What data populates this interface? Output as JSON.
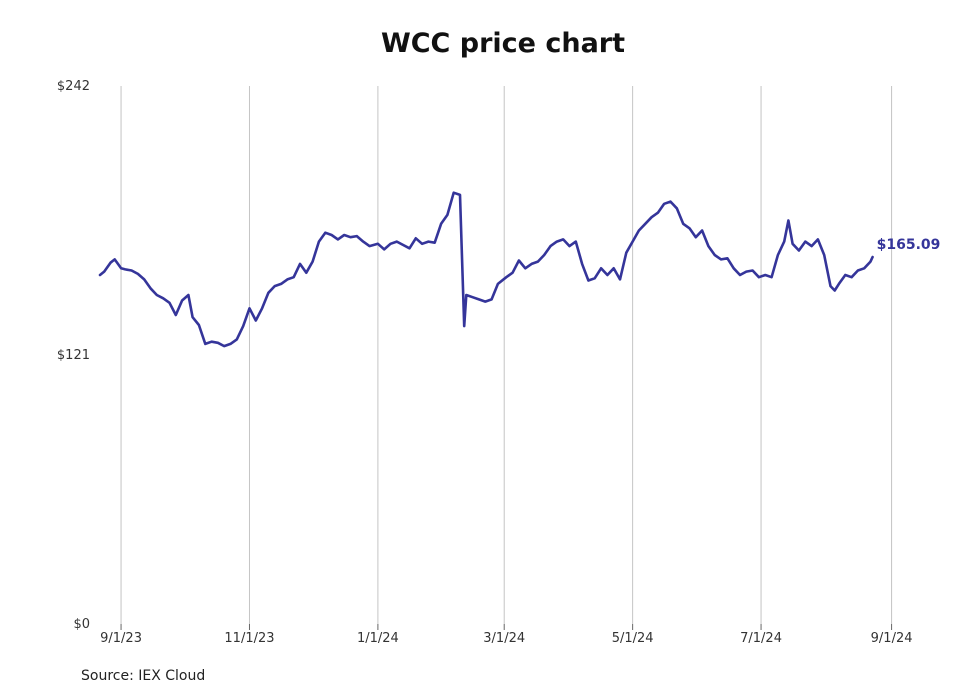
{
  "chart_data": {
    "type": "line",
    "title": "WCC price chart",
    "xlabel": "",
    "ylabel": "",
    "ylim": [
      0,
      242
    ],
    "y_ticks": [
      "$0",
      "$121",
      "$242"
    ],
    "x_ticks": [
      "9/1/23",
      "11/1/23",
      "1/1/24",
      "3/1/24",
      "5/1/24",
      "7/1/24",
      "9/1/24"
    ],
    "x_range": [
      "2023-08-22",
      "2024-09-05"
    ],
    "grid": "vertical",
    "color": "#35359a",
    "last_value_label": "$165.09",
    "series": [
      {
        "points": [
          [
            "2023-08-22",
            157.0
          ],
          [
            "2023-08-24",
            158.5
          ],
          [
            "2023-08-27",
            162.5
          ],
          [
            "2023-08-29",
            164.0
          ],
          [
            "2023-09-01",
            160.0
          ],
          [
            "2023-09-03",
            159.5
          ],
          [
            "2023-09-06",
            159.0
          ],
          [
            "2023-09-09",
            157.5
          ],
          [
            "2023-09-12",
            155.0
          ],
          [
            "2023-09-15",
            151.0
          ],
          [
            "2023-09-18",
            148.0
          ],
          [
            "2023-09-21",
            146.5
          ],
          [
            "2023-09-24",
            144.5
          ],
          [
            "2023-09-27",
            139.0
          ],
          [
            "2023-09-30",
            145.5
          ],
          [
            "2023-10-03",
            148.0
          ],
          [
            "2023-10-05",
            138.0
          ],
          [
            "2023-10-08",
            134.5
          ],
          [
            "2023-10-11",
            126.0
          ],
          [
            "2023-10-14",
            127.0
          ],
          [
            "2023-10-17",
            126.5
          ],
          [
            "2023-10-20",
            125.0
          ],
          [
            "2023-10-23",
            126.0
          ],
          [
            "2023-10-26",
            128.0
          ],
          [
            "2023-10-29",
            134.0
          ],
          [
            "2023-11-01",
            142.0
          ],
          [
            "2023-11-04",
            136.5
          ],
          [
            "2023-11-07",
            142.0
          ],
          [
            "2023-11-10",
            149.0
          ],
          [
            "2023-11-13",
            152.0
          ],
          [
            "2023-11-16",
            153.0
          ],
          [
            "2023-11-19",
            155.0
          ],
          [
            "2023-11-22",
            156.0
          ],
          [
            "2023-11-25",
            162.0
          ],
          [
            "2023-11-28",
            158.0
          ],
          [
            "2023-12-01",
            163.0
          ],
          [
            "2023-12-04",
            172.0
          ],
          [
            "2023-12-07",
            176.0
          ],
          [
            "2023-12-10",
            175.0
          ],
          [
            "2023-12-13",
            173.0
          ],
          [
            "2023-12-16",
            175.0
          ],
          [
            "2023-12-19",
            174.0
          ],
          [
            "2023-12-22",
            174.5
          ],
          [
            "2023-12-25",
            172.0
          ],
          [
            "2023-12-28",
            170.0
          ],
          [
            "2024-01-01",
            171.0
          ],
          [
            "2024-01-04",
            168.5
          ],
          [
            "2024-01-07",
            171.0
          ],
          [
            "2024-01-10",
            172.0
          ],
          [
            "2024-01-13",
            170.5
          ],
          [
            "2024-01-16",
            169.0
          ],
          [
            "2024-01-19",
            173.5
          ],
          [
            "2024-01-22",
            171.0
          ],
          [
            "2024-01-25",
            172.0
          ],
          [
            "2024-01-28",
            171.5
          ],
          [
            "2024-01-31",
            180.0
          ],
          [
            "2024-02-03",
            184.0
          ],
          [
            "2024-02-06",
            194.0
          ],
          [
            "2024-02-09",
            193.0
          ],
          [
            "2024-02-11",
            134.0
          ],
          [
            "2024-02-12",
            148.0
          ],
          [
            "2024-02-15",
            147.0
          ],
          [
            "2024-02-18",
            146.0
          ],
          [
            "2024-02-21",
            145.0
          ],
          [
            "2024-02-24",
            146.0
          ],
          [
            "2024-02-27",
            153.0
          ],
          [
            "2024-03-02",
            156.0
          ],
          [
            "2024-03-05",
            158.0
          ],
          [
            "2024-03-08",
            163.5
          ],
          [
            "2024-03-11",
            160.0
          ],
          [
            "2024-03-14",
            162.0
          ],
          [
            "2024-03-17",
            163.0
          ],
          [
            "2024-03-20",
            166.0
          ],
          [
            "2024-03-23",
            170.0
          ],
          [
            "2024-03-26",
            172.0
          ],
          [
            "2024-03-29",
            173.0
          ],
          [
            "2024-04-01",
            170.0
          ],
          [
            "2024-04-04",
            172.0
          ],
          [
            "2024-04-07",
            162.0
          ],
          [
            "2024-04-10",
            154.5
          ],
          [
            "2024-04-13",
            155.5
          ],
          [
            "2024-04-16",
            160.0
          ],
          [
            "2024-04-19",
            157.0
          ],
          [
            "2024-04-22",
            160.0
          ],
          [
            "2024-04-25",
            155.0
          ],
          [
            "2024-04-28",
            167.0
          ],
          [
            "2024-05-01",
            172.0
          ],
          [
            "2024-05-04",
            177.0
          ],
          [
            "2024-05-07",
            180.0
          ],
          [
            "2024-05-10",
            183.0
          ],
          [
            "2024-05-13",
            185.0
          ],
          [
            "2024-05-16",
            189.0
          ],
          [
            "2024-05-19",
            190.0
          ],
          [
            "2024-05-22",
            187.0
          ],
          [
            "2024-05-25",
            180.0
          ],
          [
            "2024-05-28",
            178.0
          ],
          [
            "2024-05-31",
            174.0
          ],
          [
            "2024-06-03",
            177.0
          ],
          [
            "2024-06-06",
            170.0
          ],
          [
            "2024-06-09",
            166.0
          ],
          [
            "2024-06-12",
            164.0
          ],
          [
            "2024-06-15",
            164.5
          ],
          [
            "2024-06-18",
            160.0
          ],
          [
            "2024-06-21",
            157.0
          ],
          [
            "2024-06-24",
            158.5
          ],
          [
            "2024-06-27",
            159.0
          ],
          [
            "2024-06-30",
            156.0
          ],
          [
            "2024-07-03",
            157.0
          ],
          [
            "2024-07-06",
            156.0
          ],
          [
            "2024-07-09",
            166.0
          ],
          [
            "2024-07-12",
            172.0
          ],
          [
            "2024-07-14",
            181.5
          ],
          [
            "2024-07-16",
            171.0
          ],
          [
            "2024-07-19",
            168.0
          ],
          [
            "2024-07-22",
            172.0
          ],
          [
            "2024-07-25",
            170.0
          ],
          [
            "2024-07-28",
            173.0
          ],
          [
            "2024-07-31",
            166.0
          ],
          [
            "2024-08-03",
            152.0
          ],
          [
            "2024-08-05",
            150.0
          ],
          [
            "2024-08-07",
            153.0
          ],
          [
            "2024-08-10",
            157.0
          ],
          [
            "2024-08-13",
            156.0
          ],
          [
            "2024-08-16",
            159.0
          ],
          [
            "2024-08-19",
            160.0
          ],
          [
            "2024-08-22",
            163.0
          ],
          [
            "2024-08-23",
            165.09
          ]
        ]
      }
    ]
  },
  "footer": {
    "source": "Source: IEX Cloud"
  }
}
